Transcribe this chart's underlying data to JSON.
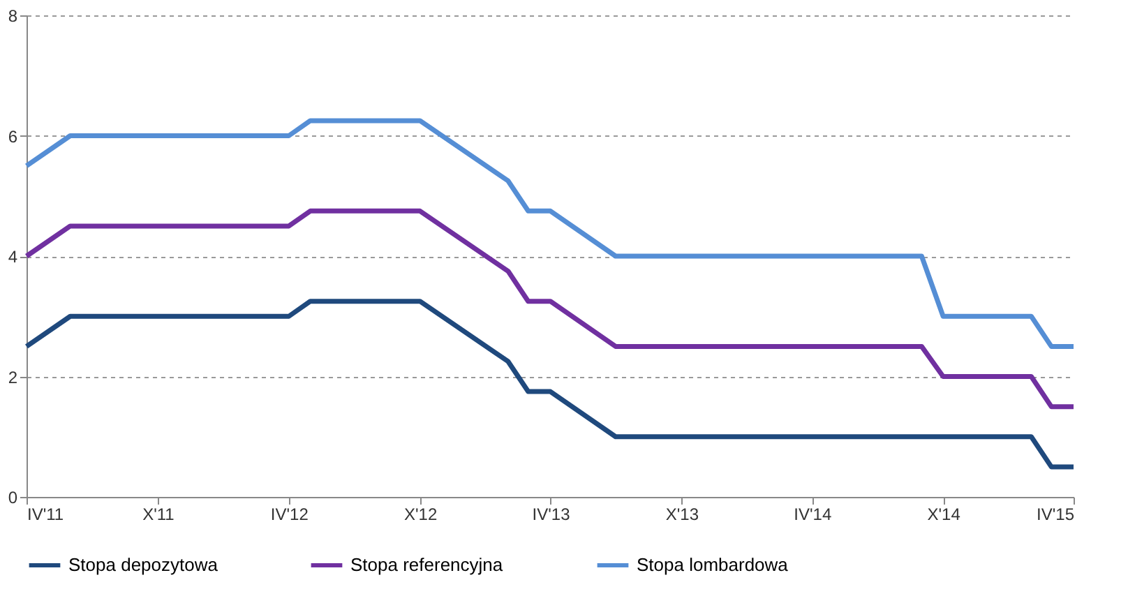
{
  "chart_data": {
    "type": "line",
    "xlim": [
      "2011-04",
      "2015-04"
    ],
    "xticks": [
      {
        "value": "2011-04",
        "label": "IV'11"
      },
      {
        "value": "2011-10",
        "label": "X'11"
      },
      {
        "value": "2012-04",
        "label": "IV'12"
      },
      {
        "value": "2012-10",
        "label": "X'12"
      },
      {
        "value": "2013-04",
        "label": "IV'13"
      },
      {
        "value": "2013-10",
        "label": "X'13"
      },
      {
        "value": "2014-04",
        "label": "IV'14"
      },
      {
        "value": "2014-10",
        "label": "X'14"
      },
      {
        "value": "2015-04",
        "label": "IV'15"
      }
    ],
    "ylim": [
      0,
      8
    ],
    "yticks": [
      0,
      2,
      4,
      6,
      8
    ],
    "grid": "y",
    "legend": "bottom",
    "line_style": "solid",
    "marker": "none",
    "series": [
      {
        "name": "Stopa depozytowa",
        "color": "#1f497d",
        "x": [
          "2011-04",
          "2011-06",
          "2012-04",
          "2012-05",
          "2012-10",
          "2013-02",
          "2013-03",
          "2013-04",
          "2013-07",
          "2014-09",
          "2014-10",
          "2015-02",
          "2015-03",
          "2015-04"
        ],
        "values": [
          2.5,
          3.0,
          3.0,
          3.25,
          3.25,
          2.25,
          1.75,
          1.75,
          1.0,
          1.0,
          1.0,
          1.0,
          0.5,
          0.5
        ]
      },
      {
        "name": "Stopa referencyjna",
        "color": "#7030a0",
        "x": [
          "2011-04",
          "2011-06",
          "2012-04",
          "2012-05",
          "2012-10",
          "2013-02",
          "2013-03",
          "2013-04",
          "2013-07",
          "2014-09",
          "2014-10",
          "2015-02",
          "2015-03",
          "2015-04"
        ],
        "values": [
          4.0,
          4.5,
          4.5,
          4.75,
          4.75,
          3.75,
          3.25,
          3.25,
          2.5,
          2.5,
          2.0,
          2.0,
          1.5,
          1.5
        ]
      },
      {
        "name": "Stopa lombardowa",
        "color": "#558ed5",
        "x": [
          "2011-04",
          "2011-06",
          "2012-04",
          "2012-05",
          "2012-10",
          "2013-02",
          "2013-03",
          "2013-04",
          "2013-07",
          "2014-09",
          "2014-10",
          "2015-02",
          "2015-03",
          "2015-04"
        ],
        "values": [
          5.5,
          6.0,
          6.0,
          6.25,
          6.25,
          5.25,
          4.75,
          4.75,
          4.0,
          4.0,
          3.0,
          3.0,
          2.5,
          2.5
        ]
      }
    ]
  }
}
